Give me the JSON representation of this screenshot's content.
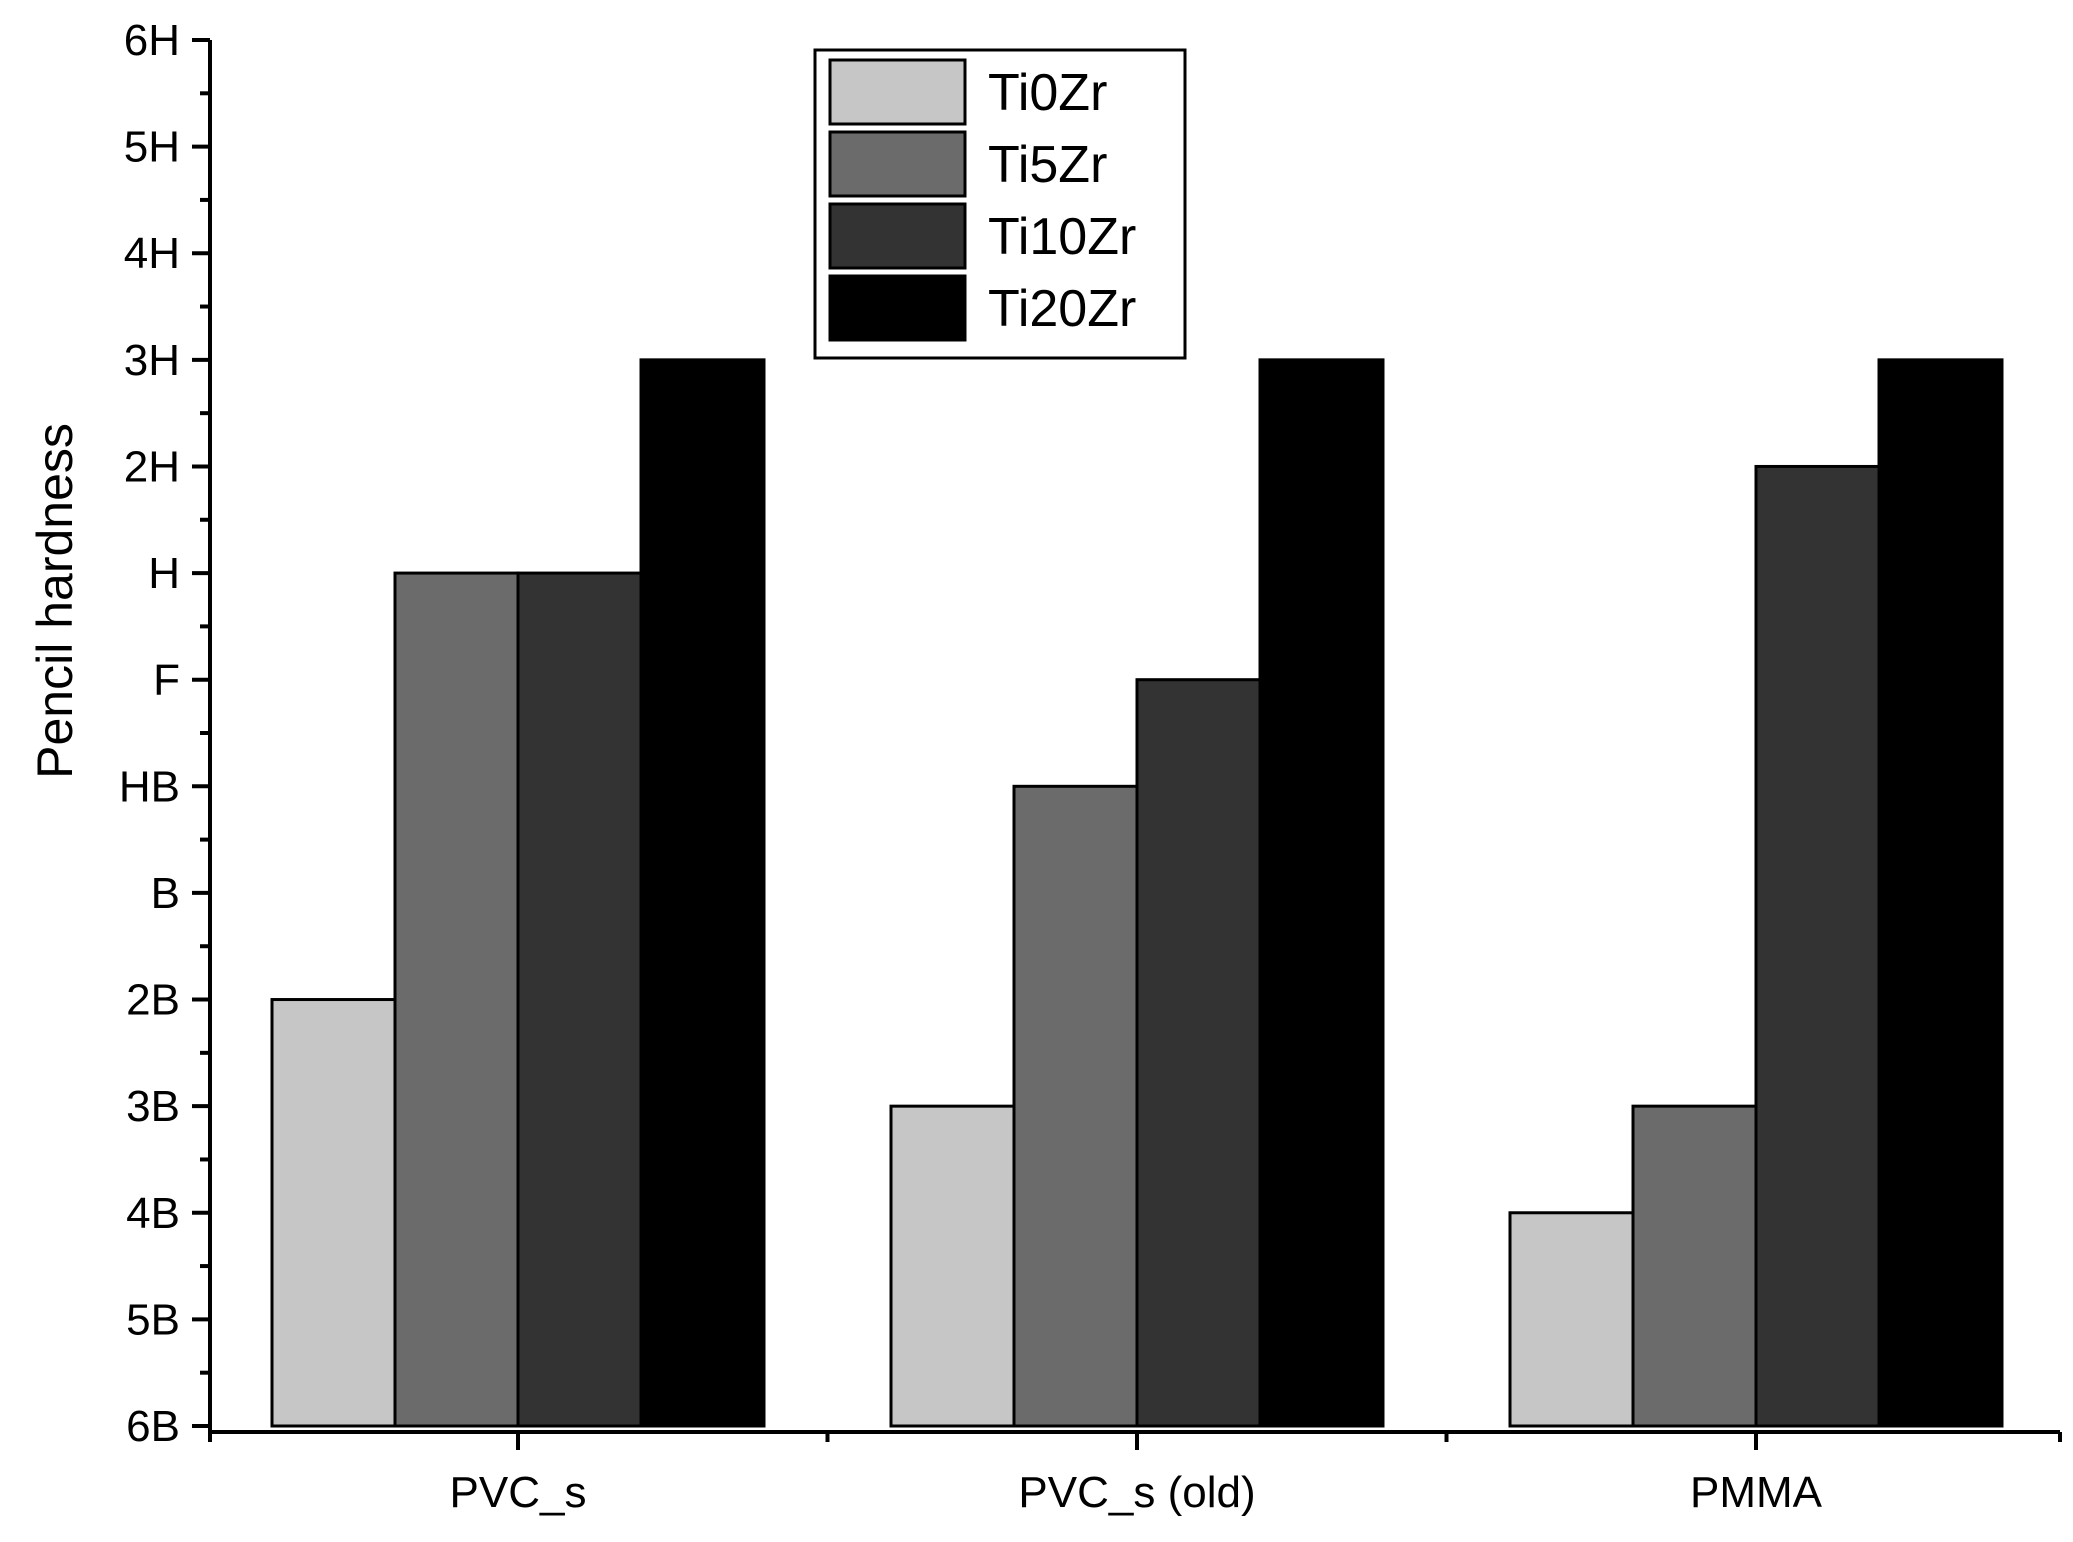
{
  "chart_data": {
    "type": "bar",
    "title": "",
    "xlabel": "",
    "ylabel": "Pencil hardness",
    "categories": [
      "PVC_s",
      "PVC_s (old)",
      "PMMA"
    ],
    "y_ticks": [
      "6B",
      "5B",
      "4B",
      "3B",
      "2B",
      "B",
      "HB",
      "F",
      "H",
      "2H",
      "3H",
      "4H",
      "5H",
      "6H"
    ],
    "ylim": [
      0,
      13
    ],
    "grid": false,
    "legend_position": "top-center",
    "series": [
      {
        "name": "Ti0Zr",
        "color": "#c6c6c6",
        "values_label": [
          "2B",
          "3B",
          "4B"
        ],
        "values": [
          4,
          3,
          2
        ]
      },
      {
        "name": "Ti5Zr",
        "color": "#6b6b6b",
        "values_label": [
          "H",
          "HB",
          "3B"
        ],
        "values": [
          8,
          6,
          3
        ]
      },
      {
        "name": "Ti10Zr",
        "color": "#333333",
        "values_label": [
          "H",
          "F",
          "2H"
        ],
        "values": [
          8,
          7,
          9
        ]
      },
      {
        "name": "Ti20Zr",
        "color": "#000000",
        "values_label": [
          "3H",
          "3H",
          "3H"
        ],
        "values": [
          10,
          10,
          10
        ]
      }
    ]
  }
}
